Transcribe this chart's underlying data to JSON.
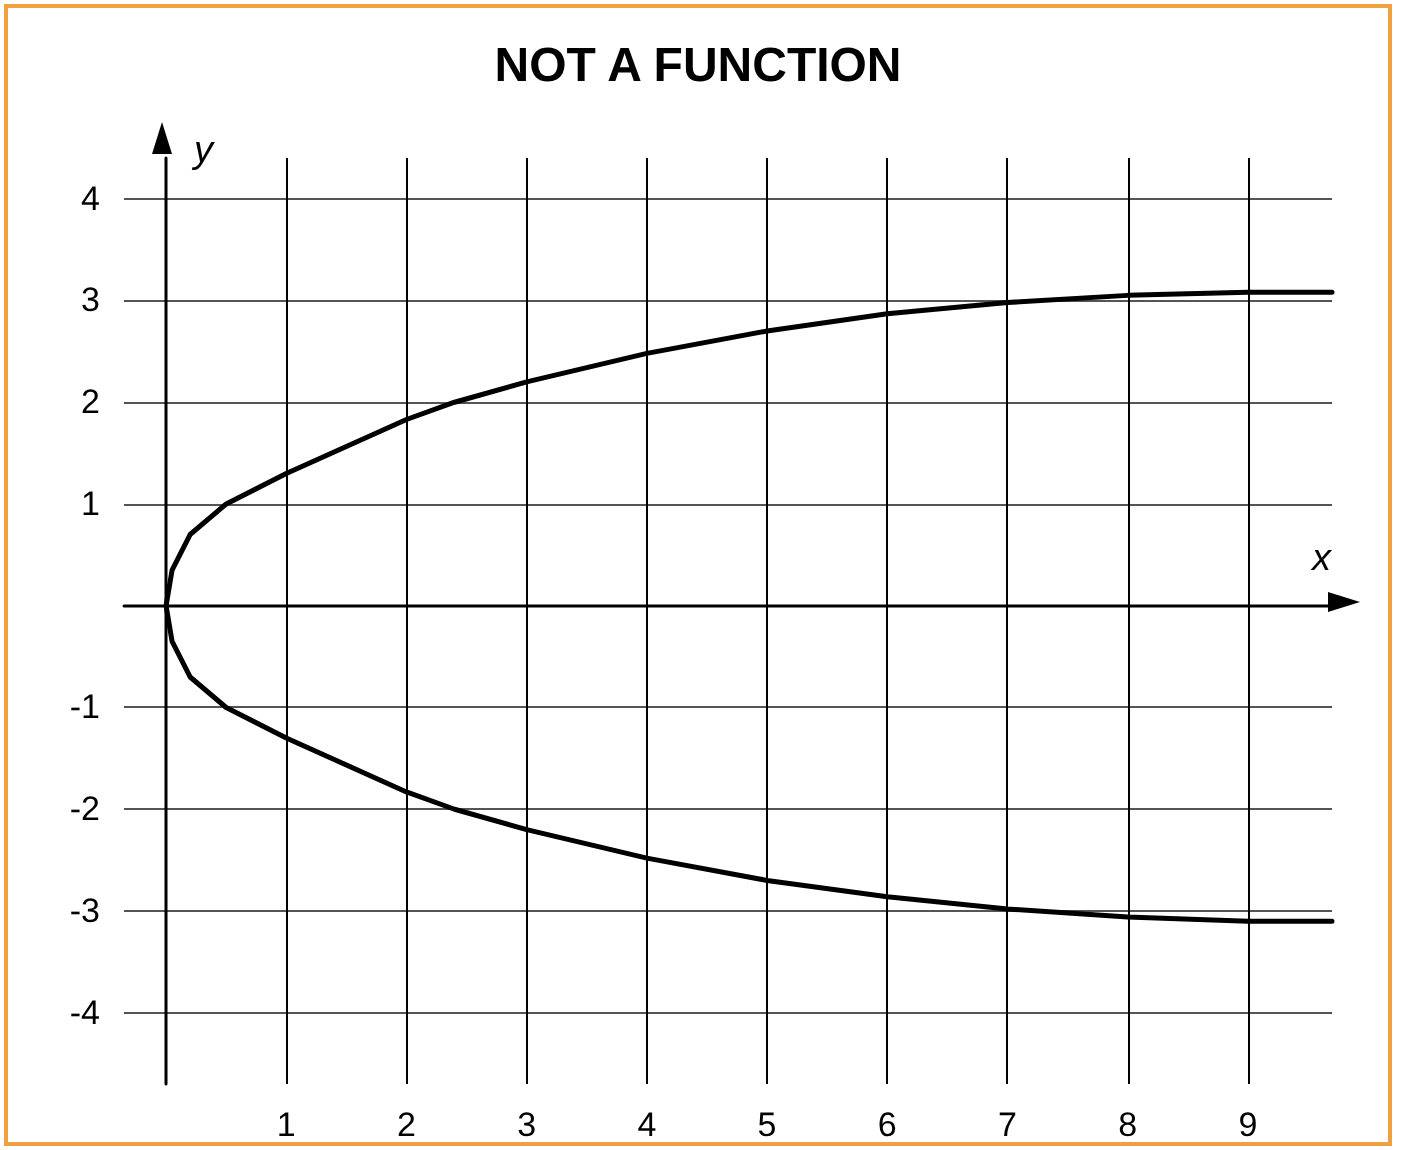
{
  "chart_data": {
    "type": "line",
    "title": "NOT A FUNCTION",
    "xlabel": "x",
    "ylabel": "y",
    "series": [
      {
        "color": "#000000",
        "x": [
          9.7,
          9,
          8,
          7,
          6,
          5,
          4,
          3,
          2.4,
          2,
          1,
          0.5,
          0.2,
          0.05,
          0,
          0.05,
          0.2,
          0.5,
          1,
          2,
          2.4,
          3,
          4,
          5,
          6,
          7,
          8,
          9,
          9.7
        ],
        "values": [
          3.08,
          3.08,
          3.05,
          2.98,
          2.87,
          2.7,
          2.48,
          2.2,
          2,
          1.83,
          1.3,
          1,
          0.7,
          0.35,
          0,
          -0.35,
          -0.7,
          -1,
          -1.3,
          -1.83,
          -2,
          -2.2,
          -2.48,
          -2.7,
          -2.86,
          -2.98,
          -3.06,
          -3.1,
          -3.1
        ]
      }
    ],
    "xlim": [
      -0.35,
      9.7
    ],
    "ylim": [
      -4.7,
      4.4
    ],
    "xticks": [
      1,
      2,
      3,
      4,
      5,
      6,
      7,
      8,
      9
    ],
    "yticks": [
      -4,
      -3,
      -2,
      -1,
      1,
      2,
      3,
      4
    ],
    "grid": true,
    "marker": "none",
    "line_style": "solid"
  }
}
